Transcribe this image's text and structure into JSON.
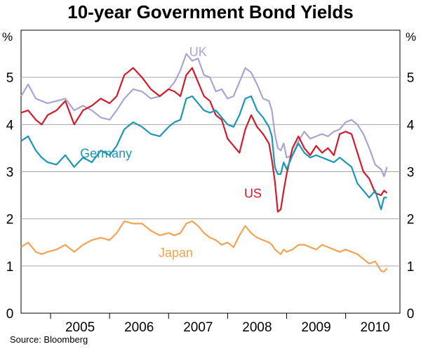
{
  "chart_data": {
    "type": "line",
    "title": "10-year Government Bond Yields",
    "ylabel": "%",
    "ylim": [
      0,
      6
    ],
    "yticks": [
      0,
      1,
      2,
      3,
      4,
      5
    ],
    "xlim": [
      2004.5,
      2010.92
    ],
    "x_tick_labels": [
      "2005",
      "2006",
      "2007",
      "2008",
      "2009",
      "2010"
    ],
    "source": "Source: Bloomberg",
    "series": [
      {
        "name": "UK",
        "color": "#a8a4d4",
        "x": [
          2004.5,
          2004.62,
          2004.75,
          2004.85,
          2004.95,
          2005.1,
          2005.25,
          2005.4,
          2005.55,
          2005.7,
          2005.85,
          2006.0,
          2006.12,
          2006.25,
          2006.4,
          2006.55,
          2006.7,
          2006.85,
          2007.0,
          2007.1,
          2007.2,
          2007.3,
          2007.4,
          2007.5,
          2007.6,
          2007.7,
          2007.8,
          2007.9,
          2008.0,
          2008.1,
          2008.2,
          2008.3,
          2008.4,
          2008.5,
          2008.6,
          2008.7,
          2008.75,
          2008.8,
          2008.85,
          2008.9,
          2008.95,
          2009.0,
          2009.1,
          2009.2,
          2009.3,
          2009.4,
          2009.5,
          2009.6,
          2009.7,
          2009.8,
          2009.9,
          2010.0,
          2010.1,
          2010.2,
          2010.3,
          2010.4,
          2010.5,
          2010.6,
          2010.65,
          2010.7
        ],
        "values": [
          4.6,
          4.85,
          4.55,
          4.5,
          4.45,
          4.5,
          4.55,
          4.3,
          4.4,
          4.3,
          4.15,
          4.1,
          4.3,
          4.55,
          4.75,
          4.7,
          4.55,
          4.6,
          4.75,
          4.9,
          5.15,
          5.5,
          5.35,
          5.4,
          5.05,
          5.0,
          4.7,
          4.75,
          4.55,
          4.6,
          4.9,
          5.2,
          5.1,
          4.85,
          4.55,
          4.5,
          4.3,
          3.8,
          3.5,
          3.45,
          3.6,
          3.3,
          3.35,
          3.65,
          3.85,
          3.7,
          3.75,
          3.8,
          3.75,
          3.85,
          3.9,
          4.05,
          4.1,
          4.0,
          3.8,
          3.5,
          3.15,
          3.05,
          2.9,
          3.1
        ]
      },
      {
        "name": "US",
        "color": "#d01c2a",
        "x": [
          2004.5,
          2004.62,
          2004.75,
          2004.85,
          2004.95,
          2005.1,
          2005.25,
          2005.4,
          2005.55,
          2005.7,
          2005.85,
          2006.0,
          2006.12,
          2006.25,
          2006.4,
          2006.55,
          2006.7,
          2006.85,
          2007.0,
          2007.1,
          2007.2,
          2007.3,
          2007.4,
          2007.5,
          2007.6,
          2007.7,
          2007.8,
          2007.9,
          2008.0,
          2008.1,
          2008.2,
          2008.3,
          2008.4,
          2008.5,
          2008.6,
          2008.7,
          2008.75,
          2008.8,
          2008.85,
          2008.9,
          2008.95,
          2009.0,
          2009.1,
          2009.2,
          2009.3,
          2009.4,
          2009.5,
          2009.6,
          2009.7,
          2009.8,
          2009.9,
          2010.0,
          2010.1,
          2010.2,
          2010.3,
          2010.4,
          2010.5,
          2010.6,
          2010.65,
          2010.7
        ],
        "values": [
          4.25,
          4.3,
          4.1,
          4.0,
          4.2,
          4.3,
          4.5,
          4.0,
          4.3,
          4.4,
          4.55,
          4.45,
          4.6,
          5.05,
          5.2,
          5.0,
          4.75,
          4.6,
          4.75,
          4.7,
          4.6,
          5.05,
          5.2,
          4.9,
          4.6,
          4.5,
          4.2,
          4.1,
          3.7,
          3.55,
          3.4,
          3.9,
          4.2,
          3.95,
          3.8,
          3.6,
          3.25,
          2.8,
          2.15,
          2.2,
          2.6,
          2.95,
          3.5,
          3.75,
          3.5,
          3.35,
          3.55,
          3.4,
          3.5,
          3.35,
          3.8,
          3.85,
          3.8,
          3.4,
          3.0,
          2.85,
          2.55,
          2.5,
          2.6,
          2.55
        ]
      },
      {
        "name": "Germany",
        "color": "#1d95b5",
        "x": [
          2004.5,
          2004.62,
          2004.75,
          2004.85,
          2004.95,
          2005.1,
          2005.25,
          2005.4,
          2005.55,
          2005.7,
          2005.85,
          2006.0,
          2006.12,
          2006.25,
          2006.4,
          2006.55,
          2006.7,
          2006.85,
          2007.0,
          2007.1,
          2007.2,
          2007.3,
          2007.4,
          2007.5,
          2007.6,
          2007.7,
          2007.8,
          2007.9,
          2008.0,
          2008.1,
          2008.2,
          2008.3,
          2008.4,
          2008.5,
          2008.6,
          2008.7,
          2008.75,
          2008.8,
          2008.85,
          2008.9,
          2008.95,
          2009.0,
          2009.1,
          2009.2,
          2009.3,
          2009.4,
          2009.5,
          2009.6,
          2009.7,
          2009.8,
          2009.9,
          2010.0,
          2010.1,
          2010.2,
          2010.3,
          2010.4,
          2010.5,
          2010.6,
          2010.65,
          2010.7
        ],
        "values": [
          3.65,
          3.75,
          3.45,
          3.3,
          3.2,
          3.15,
          3.35,
          3.1,
          3.3,
          3.2,
          3.45,
          3.35,
          3.55,
          3.9,
          4.05,
          3.95,
          3.8,
          3.75,
          3.95,
          4.05,
          4.1,
          4.55,
          4.6,
          4.45,
          4.3,
          4.25,
          4.3,
          4.15,
          4.0,
          3.95,
          4.2,
          4.55,
          4.6,
          4.3,
          4.15,
          3.95,
          3.75,
          3.1,
          2.95,
          2.95,
          3.2,
          3.05,
          3.35,
          3.6,
          3.4,
          3.3,
          3.35,
          3.3,
          3.25,
          3.2,
          3.3,
          3.2,
          3.1,
          2.75,
          2.6,
          2.45,
          2.6,
          2.2,
          2.45,
          2.45
        ]
      },
      {
        "name": "Japan",
        "color": "#f2a354",
        "x": [
          2004.5,
          2004.62,
          2004.75,
          2004.85,
          2004.95,
          2005.1,
          2005.25,
          2005.4,
          2005.55,
          2005.7,
          2005.85,
          2006.0,
          2006.12,
          2006.25,
          2006.4,
          2006.55,
          2006.7,
          2006.85,
          2007.0,
          2007.1,
          2007.2,
          2007.3,
          2007.4,
          2007.5,
          2007.6,
          2007.7,
          2007.8,
          2007.9,
          2008.0,
          2008.1,
          2008.2,
          2008.3,
          2008.4,
          2008.5,
          2008.6,
          2008.7,
          2008.75,
          2008.8,
          2008.85,
          2008.9,
          2008.95,
          2009.0,
          2009.1,
          2009.2,
          2009.3,
          2009.4,
          2009.5,
          2009.6,
          2009.7,
          2009.8,
          2009.9,
          2010.0,
          2010.1,
          2010.2,
          2010.3,
          2010.4,
          2010.5,
          2010.6,
          2010.65,
          2010.7
        ],
        "values": [
          1.4,
          1.5,
          1.3,
          1.25,
          1.3,
          1.35,
          1.45,
          1.3,
          1.45,
          1.55,
          1.6,
          1.55,
          1.7,
          1.95,
          1.9,
          1.9,
          1.75,
          1.65,
          1.7,
          1.65,
          1.7,
          1.9,
          1.95,
          1.85,
          1.7,
          1.6,
          1.55,
          1.45,
          1.5,
          1.4,
          1.65,
          1.85,
          1.7,
          1.6,
          1.55,
          1.5,
          1.45,
          1.35,
          1.3,
          1.25,
          1.35,
          1.3,
          1.35,
          1.45,
          1.45,
          1.4,
          1.35,
          1.45,
          1.4,
          1.35,
          1.3,
          1.35,
          1.3,
          1.25,
          1.15,
          1.05,
          1.1,
          0.9,
          0.88,
          0.95
        ]
      }
    ],
    "annotations": [
      {
        "text": "UK",
        "x": 2007.35,
        "y": 5.45,
        "color": "#a8a4d4"
      },
      {
        "text": "Germany",
        "x": 2005.5,
        "y": 3.3,
        "color": "#1d95b5"
      },
      {
        "text": "US",
        "x": 2008.28,
        "y": 2.45,
        "color": "#d01c2a"
      },
      {
        "text": "Japan",
        "x": 2006.83,
        "y": 1.19,
        "color": "#f2a354"
      }
    ]
  }
}
